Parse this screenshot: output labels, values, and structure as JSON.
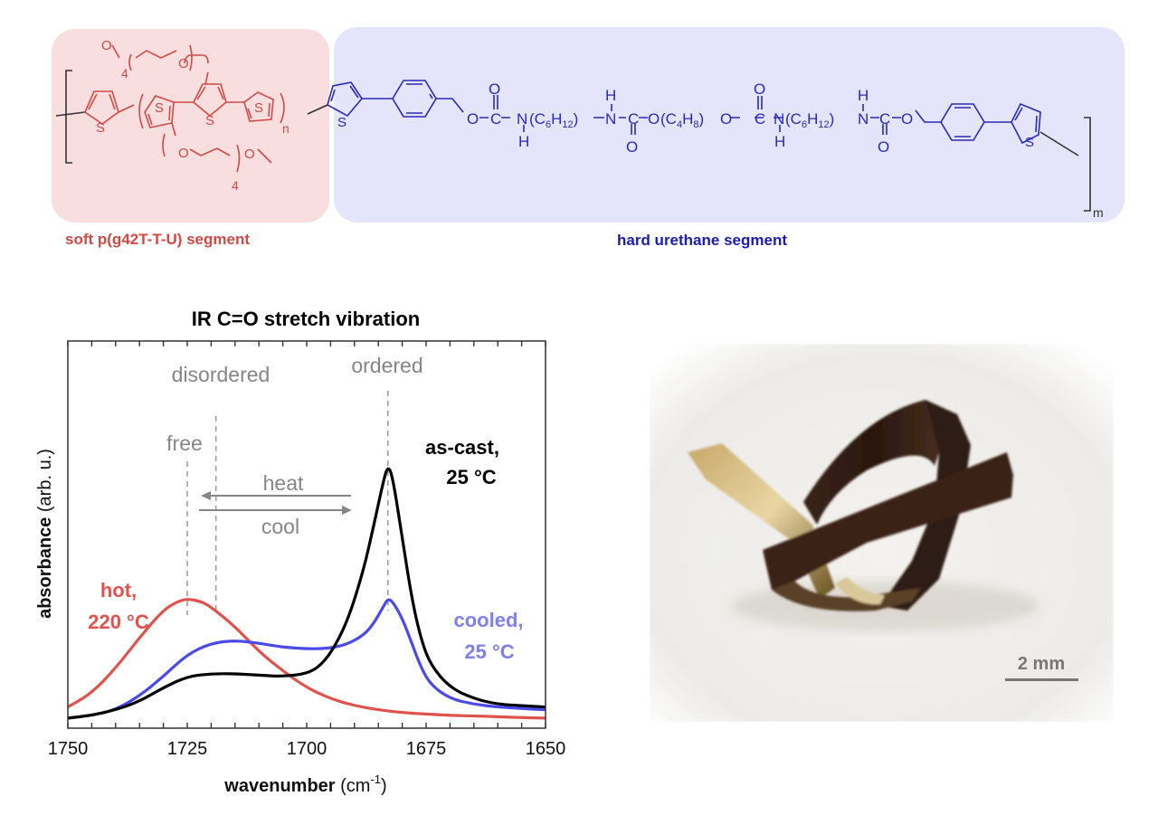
{
  "structure": {
    "soft_segment_label": "soft p(g42T-T-U)  segment",
    "hard_segment_label": "hard urethane segment",
    "soft_color": "#d04a44",
    "hard_color": "#1b1bb0",
    "soft_bg": "#f8dede",
    "hard_bg": "#e4e4fa",
    "repeat_n": "n",
    "repeat_m": "m",
    "side_chain_count": "4",
    "atoms": {
      "S": "S",
      "O": "O",
      "C": "C",
      "N": "N",
      "H": "H"
    },
    "urethane_chain": {
      "c6h12_a": "(C",
      "c6h12_sub1": "6",
      "c6h12_h": "H",
      "c6h12_sub2": "12",
      "c6h12_close": ")",
      "c4h8_a": "(C",
      "c4h8_sub1": "4",
      "c4h8_h": "H",
      "c4h8_sub2": "8",
      "c4h8_close": ")"
    }
  },
  "chart_data": {
    "type": "line",
    "title": "IR C=O stretch vibration",
    "xlabel": "wavenumber (cm-1)",
    "xlabel_main": "wavenumber",
    "xlabel_unit_open": " (cm",
    "xlabel_unit_sup": "-1",
    "xlabel_unit_close": ")",
    "ylabel": "absorbance (arb. u.)",
    "ylabel_main": "absorbance",
    "ylabel_unit": " (arb. u.)",
    "xlim": [
      1750,
      1650
    ],
    "x_reversed": true,
    "ylim": [
      0,
      1
    ],
    "grid": false,
    "xticks": [
      1750,
      1725,
      1700,
      1675,
      1650
    ],
    "xtick_labels": [
      "1750",
      "1725",
      "1700",
      "1675",
      "1650"
    ],
    "minor_tick_step": 5,
    "series": [
      {
        "name": "as-cast, 25 °C",
        "color": "#000000",
        "x": [
          1750,
          1745,
          1740,
          1735,
          1730,
          1725,
          1720,
          1715,
          1710,
          1705,
          1700,
          1697,
          1694,
          1691,
          1688,
          1686,
          1684,
          1683,
          1682,
          1680,
          1678,
          1676,
          1674,
          1670,
          1665,
          1660,
          1655,
          1650
        ],
        "values": [
          0.01,
          0.02,
          0.04,
          0.07,
          0.12,
          0.16,
          0.17,
          0.17,
          0.165,
          0.16,
          0.17,
          0.2,
          0.27,
          0.38,
          0.55,
          0.7,
          0.86,
          0.92,
          0.88,
          0.66,
          0.44,
          0.29,
          0.2,
          0.12,
          0.08,
          0.06,
          0.055,
          0.05
        ]
      },
      {
        "name": "cooled, 25 °C",
        "color": "#4a4ae8",
        "x": [
          1750,
          1745,
          1740,
          1735,
          1730,
          1725,
          1720,
          1715,
          1710,
          1705,
          1700,
          1697,
          1694,
          1691,
          1688,
          1686,
          1684,
          1683,
          1682,
          1680,
          1678,
          1676,
          1674,
          1670,
          1665,
          1660,
          1655,
          1650
        ],
        "values": [
          0.01,
          0.02,
          0.04,
          0.09,
          0.16,
          0.24,
          0.28,
          0.29,
          0.28,
          0.265,
          0.26,
          0.26,
          0.265,
          0.28,
          0.31,
          0.35,
          0.41,
          0.44,
          0.43,
          0.37,
          0.28,
          0.19,
          0.13,
          0.08,
          0.06,
          0.05,
          0.045,
          0.04
        ]
      },
      {
        "name": "hot, 220 °C",
        "color": "#e0524c",
        "x": [
          1750,
          1745,
          1740,
          1735,
          1730,
          1727,
          1725,
          1722,
          1720,
          1715,
          1710,
          1705,
          1700,
          1695,
          1690,
          1685,
          1680,
          1675,
          1670,
          1665,
          1660,
          1655,
          1650
        ],
        "values": [
          0.05,
          0.1,
          0.19,
          0.3,
          0.4,
          0.43,
          0.44,
          0.43,
          0.41,
          0.34,
          0.25,
          0.18,
          0.12,
          0.08,
          0.055,
          0.04,
          0.03,
          0.025,
          0.02,
          0.018,
          0.015,
          0.012,
          0.01
        ]
      }
    ],
    "annotations": {
      "disordered": "disordered",
      "ordered": "ordered",
      "free": "free",
      "heat": "heat",
      "cool": "cool",
      "as_cast_line1": "as-cast,",
      "as_cast_line2": "25 °C",
      "hot_line1": "hot,",
      "hot_line2": "220 °C",
      "cooled_line1": "cooled,",
      "cooled_line2": "25 °C"
    },
    "reference_lines": [
      {
        "label": "free",
        "x": 1725
      },
      {
        "label": "disordered",
        "x": 1719
      },
      {
        "label": "ordered",
        "x": 1683
      }
    ],
    "arrows": [
      {
        "label": "heat",
        "from": 1689,
        "to": 1720
      },
      {
        "label": "cool",
        "from": 1720,
        "to": 1689
      }
    ],
    "annotation_color": "#808080"
  },
  "photo": {
    "scale_bar_label": "2 mm",
    "scale_bar_color": "#777777"
  }
}
